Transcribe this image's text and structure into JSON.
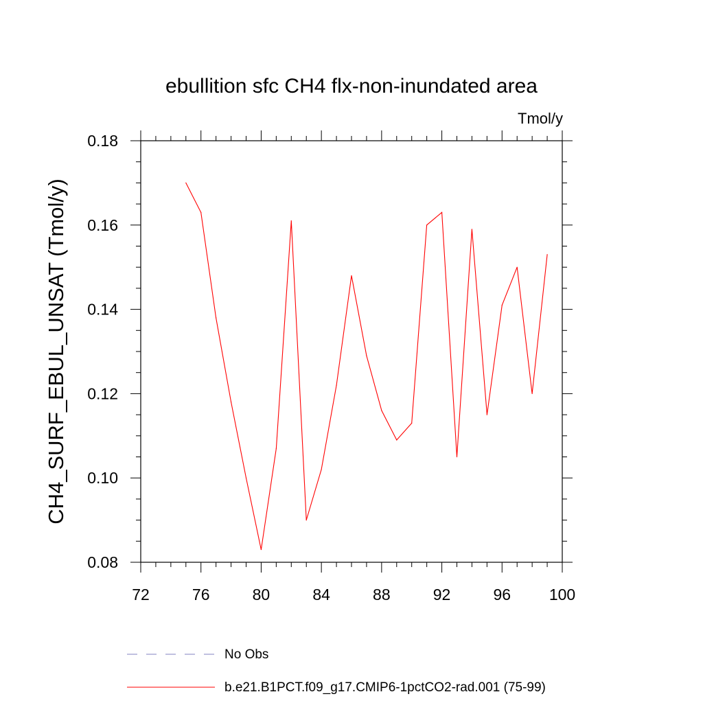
{
  "chart_data": {
    "type": "line",
    "title": "ebullition sfc CH4 flx-non-inundated area",
    "units_label": "Tmol/y",
    "xlabel": "",
    "ylabel": "CH4_SURF_EBUL_UNSAT  (Tmol/y)",
    "xlim": [
      72,
      100
    ],
    "ylim": [
      0.08,
      0.18
    ],
    "x_ticks": [
      72,
      76,
      80,
      84,
      88,
      92,
      96,
      100
    ],
    "y_ticks": [
      "0.08",
      "0.10",
      "0.12",
      "0.14",
      "0.16",
      "0.18"
    ],
    "legend_position": "bottom",
    "series": [
      {
        "name": "No Obs",
        "color": "#8080c0",
        "dash": "dashed",
        "x": [],
        "values": []
      },
      {
        "name": "b.e21.B1PCT.f09_g17.CMIP6-1pctCO2-rad.001 (75-99)",
        "color": "#ff0000",
        "dash": "solid",
        "x": [
          75,
          76,
          77,
          78,
          79,
          80,
          81,
          82,
          83,
          84,
          85,
          86,
          87,
          88,
          89,
          90,
          91,
          92,
          93,
          94,
          95,
          96,
          97,
          98,
          99
        ],
        "values": [
          0.17,
          0.163,
          0.138,
          0.118,
          0.1,
          0.083,
          0.107,
          0.161,
          0.09,
          0.102,
          0.122,
          0.148,
          0.129,
          0.116,
          0.109,
          0.113,
          0.16,
          0.163,
          0.105,
          0.159,
          0.115,
          0.141,
          0.15,
          0.12,
          0.153
        ]
      }
    ]
  }
}
